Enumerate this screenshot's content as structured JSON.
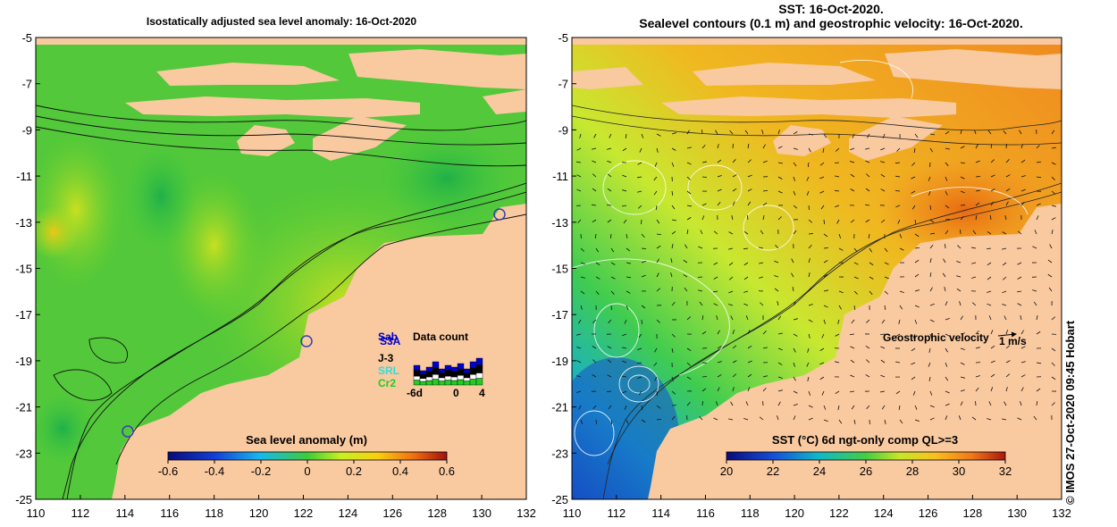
{
  "left_panel": {
    "title": "Isostatically adjusted sea level anomaly: 16-Oct-2020",
    "colorbar": {
      "title": "Sea level anomaly (m)",
      "ticks": [
        "-0.6",
        "-0.4",
        "-0.2",
        "0",
        "0.2",
        "0.4",
        "0.6"
      ],
      "range": [
        -0.6,
        0.6
      ]
    },
    "data_count": {
      "title": "Data count",
      "satellites": [
        {
          "label": "Sab",
          "color": "#0000cc"
        },
        {
          "label": "S3A",
          "color": "#0000cc"
        },
        {
          "label": "J-3",
          "color": "#000000"
        },
        {
          "label": "SRL",
          "color": "#33dddd"
        },
        {
          "label": "Cr2",
          "color": "#22cc22"
        }
      ],
      "axis_labels": [
        "-6d",
        "0",
        "4"
      ]
    }
  },
  "right_panel": {
    "title_line1": "SST: 16-Oct-2020.",
    "title_line2": "Sealevel contours (0.1 m) and geostrophic velocity: 16-Oct-2020.",
    "colorbar": {
      "title": "SST (°C) 6d ngt-only comp QL>=3",
      "ticks": [
        "20",
        "22",
        "24",
        "26",
        "28",
        "30",
        "32"
      ],
      "range": [
        20,
        32
      ]
    },
    "velocity_legend": {
      "label": "Geostrophic velocity",
      "scale": "1 m/s"
    }
  },
  "axes": {
    "lon_ticks": [
      "110",
      "112",
      "114",
      "116",
      "118",
      "120",
      "122",
      "124",
      "126",
      "128",
      "130",
      "132"
    ],
    "lat_ticks": [
      "-5",
      "-7",
      "-9",
      "-11",
      "-13",
      "-15",
      "-17",
      "-19",
      "-21",
      "-23",
      "-25"
    ],
    "lon_range": [
      110,
      132
    ],
    "lat_range": [
      -25,
      -5
    ]
  },
  "credit": "© IMOS 27-Oct-2020 09:45 Hobart",
  "colors": {
    "land": "#f9c9a0",
    "ocean_mid": "#55cc33"
  }
}
